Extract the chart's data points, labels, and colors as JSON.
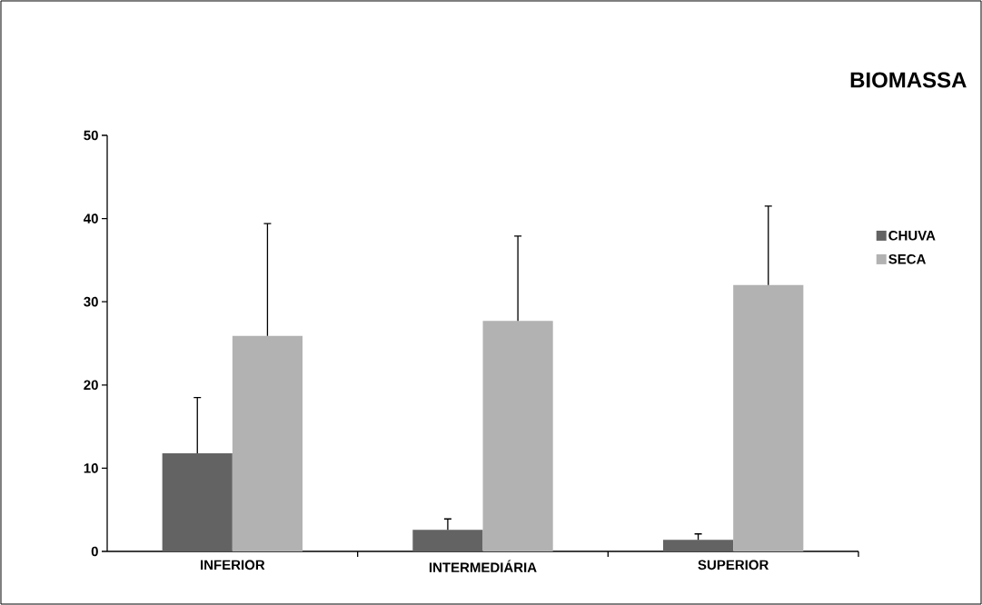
{
  "chart_data": {
    "type": "bar",
    "title": "BIOMASSA",
    "categories": [
      "INFERIOR",
      "INTERMEDIÁRIA",
      "SUPERIOR"
    ],
    "series": [
      {
        "name": "CHUVA",
        "color": "#636363",
        "values": [
          11.8,
          2.6,
          1.4
        ],
        "errors": [
          [
            11.8,
            18.5
          ],
          [
            2.6,
            3.9
          ],
          [
            1.4,
            2.1
          ]
        ]
      },
      {
        "name": "SECA",
        "color": "#b2b2b2",
        "values": [
          25.9,
          27.7,
          32.0
        ],
        "errors": [
          [
            25.9,
            39.4
          ],
          [
            27.7,
            37.9
          ],
          [
            32.0,
            41.5
          ]
        ]
      }
    ],
    "ylim": [
      0,
      50
    ],
    "yticks": [
      0,
      10,
      20,
      30,
      40,
      50
    ],
    "grid": false,
    "legend": "right"
  }
}
